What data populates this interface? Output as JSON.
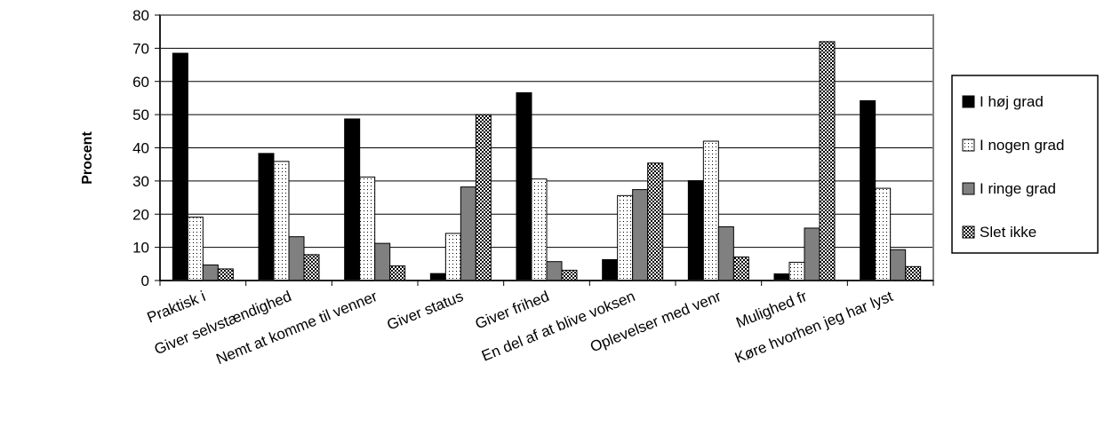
{
  "chart_data": {
    "type": "bar",
    "title": "",
    "xlabel": "",
    "ylabel": "Procent",
    "ylim": [
      0,
      80
    ],
    "yticks": [
      0,
      10,
      20,
      30,
      40,
      50,
      60,
      70,
      80
    ],
    "grid": true,
    "legend_position": "right",
    "categories": [
      "Praktisk i",
      "Giver selvstændighed",
      "Nemt at komme til venner",
      "Giver status",
      "Giver frihed",
      "En del af at blive voksen",
      "Oplevelser med venr",
      "Mulighed fr",
      "Køre hvorhen jeg har lyst"
    ],
    "series": [
      {
        "name": "I høj grad",
        "pattern": "solid-black",
        "values": [
          68.5,
          38.3,
          48.7,
          2.1,
          56.6,
          6.3,
          30.1,
          2.0,
          54.2
        ]
      },
      {
        "name": "I nogen grad",
        "pattern": "dotted-white",
        "values": [
          19.1,
          35.9,
          31.2,
          14.2,
          30.6,
          25.6,
          42.0,
          5.5,
          27.8
        ]
      },
      {
        "name": "I ringe grad",
        "pattern": "solid-gray",
        "values": [
          4.7,
          13.2,
          11.2,
          28.2,
          5.7,
          27.4,
          16.2,
          15.8,
          9.3
        ]
      },
      {
        "name": "Slet ikke",
        "pattern": "checker",
        "values": [
          3.5,
          7.8,
          4.4,
          50.0,
          3.1,
          35.4,
          7.1,
          72.0,
          4.2
        ]
      }
    ]
  }
}
